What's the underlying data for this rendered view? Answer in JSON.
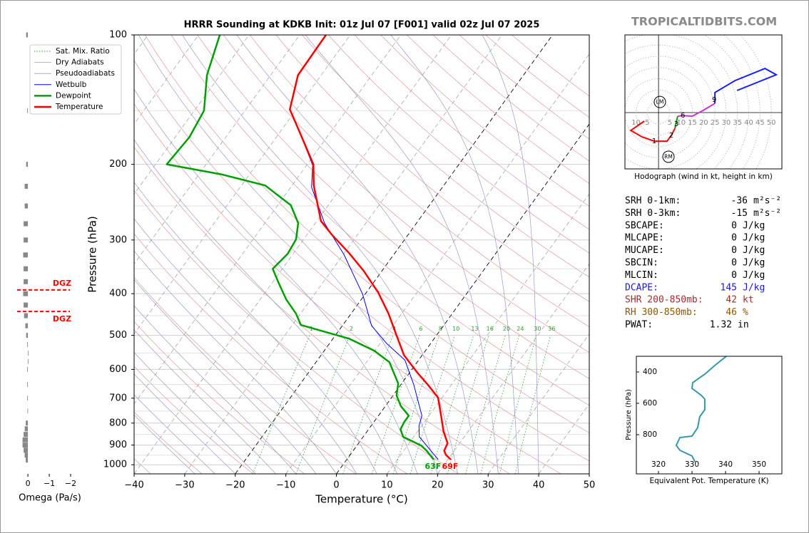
{
  "watermark": "TROPICALTIDBITS.COM",
  "chart_data": [
    {
      "type": "skewt",
      "title": "HRRR Sounding at KDKB Init: 01z Jul 07 [F001] valid 02z Jul 07 2025",
      "xlabel": "Temperature (°C)",
      "ylabel": "Pressure (hPa)",
      "xlim": [
        -40,
        50
      ],
      "xticks": [
        {
          "value": -40,
          "label": "−40"
        },
        {
          "value": -30,
          "label": "−30"
        },
        {
          "value": -20,
          "label": "−20"
        },
        {
          "value": -10,
          "label": "−10"
        },
        0,
        10,
        20,
        30,
        40,
        50
      ],
      "ylim": [
        1050,
        100
      ],
      "log_y": true,
      "yticks": [
        100,
        200,
        300,
        400,
        500,
        600,
        700,
        800,
        900,
        1000
      ],
      "grid": true,
      "legend": "upper left",
      "reference_lines": [
        {
          "name": "Sat. Mix. Ratio",
          "color": "#3a9a3a"
        },
        {
          "name": "Dry Adiabats",
          "color": "#e39a9a"
        },
        {
          "name": "Pseudoadiabats",
          "color": "#9a9ad0"
        }
      ],
      "mixing_ratios": [
        1,
        2,
        4,
        6,
        8,
        10,
        13,
        16,
        20,
        24,
        30,
        36
      ],
      "series": [
        {
          "name": "Wetbulb",
          "color": "#0000ff",
          "pressure": [
            973,
            912,
            861,
            813,
            769,
            652,
            571,
            523,
            475,
            401,
            324,
            274,
            226,
            201,
            168,
            149
          ],
          "values": [
            18.1,
            14.4,
            11.1,
            9.5,
            8.6,
            2.6,
            -2.7,
            -8.6,
            -14.2,
            -20.5,
            -29.9,
            -38.2,
            -45.9,
            -48.8,
            -56.2,
            -61.3
          ]
        },
        {
          "name": "Dewpoint",
          "color": "#00a000",
          "pressure": [
            973,
            927,
            902,
            861,
            827,
            795,
            769,
            731,
            690,
            647,
            577,
            543,
            509,
            473,
            445,
            413,
            375,
            350,
            323,
            299,
            274,
            249,
            224,
            211,
            200,
            173,
            150,
            124,
            100
          ],
          "values": [
            17.2,
            14.5,
            12.7,
            7.9,
            6.3,
            6.0,
            6.0,
            3.1,
            0.7,
            -0.7,
            -5.5,
            -10.1,
            -16.8,
            -28.3,
            -30.9,
            -34.8,
            -39.0,
            -41.9,
            -41.1,
            -41.5,
            -43.4,
            -47.4,
            -55.3,
            -65.6,
            -77.8,
            -77.2,
            -78.1,
            -82.6,
            -85.8
          ]
        },
        {
          "name": "Temperature",
          "color": "#ff0000",
          "pressure": [
            973,
            948,
            927,
            891,
            836,
            774,
            698,
            652,
            609,
            556,
            499,
            445,
            397,
            354,
            322,
            292,
            271,
            224,
            200,
            168,
            149,
            124,
            100
          ],
          "values": [
            20.6,
            18.9,
            18.0,
            17.6,
            15.1,
            12.6,
            9.2,
            5.4,
            1.4,
            -3.6,
            -8.0,
            -12.6,
            -17.7,
            -23.6,
            -29.0,
            -35.0,
            -39.2,
            -45.7,
            -48.8,
            -56.2,
            -61.3,
            -64.6,
            -64.8
          ]
        }
      ],
      "annotations": [
        {
          "text": "63F",
          "color": "#00a000"
        },
        {
          "text": "69F",
          "color": "#ff0000"
        }
      ]
    },
    {
      "type": "omega",
      "xlabel": "Omega (Pa/s)",
      "xlim": [
        0.37,
        -2.3
      ],
      "xticks": [
        0,
        {
          "value": -1,
          "label": "−1"
        },
        {
          "value": -2,
          "label": "−2"
        }
      ],
      "ylim": [
        1050,
        100
      ],
      "log_y": true,
      "color": "#888888",
      "pressure": [
        100,
        150,
        200,
        225,
        250,
        275,
        300,
        325,
        350,
        375,
        400,
        425,
        450,
        475,
        500,
        525,
        550,
        575,
        600,
        650,
        700,
        750,
        800,
        825,
        850,
        875,
        900,
        925,
        950,
        975
      ],
      "values": [
        0.08,
        0.03,
        0.08,
        0.15,
        0.15,
        0.2,
        0.2,
        0.22,
        0.2,
        0.2,
        0.22,
        0.2,
        0.18,
        0.12,
        0.08,
        0.03,
        -0.01,
        -0.01,
        0.03,
        0.03,
        0.03,
        0.02,
        0.1,
        0.15,
        0.2,
        0.25,
        0.25,
        0.2,
        0.15,
        0.1
      ],
      "dgz": {
        "label": "DGZ",
        "pressures": [
          392,
          440
        ],
        "color": "#ff0000"
      }
    },
    {
      "type": "hodograph",
      "caption": "Hodograph (wind in kt, height in km)",
      "xlim": [
        -14.9,
        54.7
      ],
      "ylim": [
        -25,
        34.5
      ],
      "xticks": [
        {
          "value": -10,
          "label": "10"
        },
        {
          "value": -5,
          "label": "5"
        },
        5,
        10,
        15,
        20,
        25,
        30,
        35,
        40,
        45,
        50
      ],
      "segments": [
        {
          "color": "#ff0000",
          "u": [
            -6.3,
            -12.3,
            -7.3,
            -1.9,
            3.8,
            5.7,
            7.3
          ],
          "v": [
            -3.8,
            -7.9,
            -10.8,
            -12.7,
            -12.7,
            -10.1,
            -7.0
          ]
        },
        {
          "color": "#00aa00",
          "u": [
            7.3,
            7.9,
            8.5
          ],
          "v": [
            -7.0,
            -3.8,
            -1.6
          ]
        },
        {
          "color": "#cc33cc",
          "u": [
            8.5,
            10.8,
            14.9,
            19.6,
            25.0
          ],
          "v": [
            -1.6,
            -1.3,
            -1.6,
            0.9,
            4.1
          ]
        },
        {
          "color": "#1a1aff",
          "u": [
            25.0,
            25.0,
            33.9,
            47.2,
            52.2,
            34.8
          ],
          "v": [
            4.1,
            8.9,
            14.2,
            19.6,
            16.8,
            9.8
          ]
        }
      ],
      "height_marks": [
        {
          "km": 1,
          "u": -1.9,
          "v": -12.7
        },
        {
          "km": 2,
          "u": 5.7,
          "v": -10.1
        },
        {
          "km": 3,
          "u": 7.9,
          "v": -5.1
        },
        {
          "km": 6,
          "u": 10.8,
          "v": -1.3
        },
        {
          "km": 9,
          "u": 24.7,
          "v": 5.7
        }
      ],
      "storm_motions": [
        {
          "label": "LM",
          "u": 0.6,
          "v": 4.7
        },
        {
          "label": "RM",
          "u": 4.4,
          "v": -19.6
        }
      ]
    },
    {
      "type": "line",
      "xlabel": "Equivalent Pot. Temperature (K)",
      "ylabel": "Pressure (hPa)",
      "xlim": [
        313.4,
        356.8
      ],
      "xticks": [
        320,
        330,
        340,
        350
      ],
      "ylim": [
        1050,
        300
      ],
      "yticks": [
        400,
        600,
        800
      ],
      "series": [
        {
          "color": "#3399aa",
          "pressure": [
            300,
            355,
            414,
            468,
            505,
            550,
            573,
            641,
            686,
            755,
            809,
            818,
            868,
            900,
            936,
            973
          ],
          "values": [
            340.2,
            337.0,
            333.8,
            330.2,
            330.0,
            332.8,
            333.8,
            333.8,
            332.3,
            331.7,
            330.0,
            326.4,
            325.3,
            326.4,
            330.0,
            330.9
          ]
        }
      ]
    }
  ],
  "parameters": [
    {
      "label": "SRH 0-1km:",
      "value": -36,
      "unit": "m²s⁻²",
      "color": "#000000"
    },
    {
      "label": "SRH 0-3km:",
      "value": -15,
      "unit": "m²s⁻²",
      "color": "#000000"
    },
    {
      "label": "SBCAPE:",
      "value": 0,
      "unit": "J/kg",
      "color": "#000000"
    },
    {
      "label": "MLCAPE:",
      "value": 0,
      "unit": "J/kg",
      "color": "#000000"
    },
    {
      "label": "MUCAPE:",
      "value": 0,
      "unit": "J/kg",
      "color": "#000000"
    },
    {
      "label": "SBCIN:",
      "value": 0,
      "unit": "J/kg",
      "color": "#000000"
    },
    {
      "label": "MLCIN:",
      "value": 0,
      "unit": "J/kg",
      "color": "#000000"
    },
    {
      "label": "DCAPE:",
      "value": 145,
      "unit": "J/kg",
      "color": "#1a1acc"
    },
    {
      "label": "SHR 200-850mb:",
      "value": 42,
      "unit": "kt",
      "color": "#a52a2a"
    },
    {
      "label": "RH 300-850mb:",
      "value": 46,
      "unit": "%",
      "color": "#8b5a00"
    },
    {
      "label": "PWAT:",
      "value": 1.32,
      "unit": "in",
      "color": "#000000"
    }
  ]
}
